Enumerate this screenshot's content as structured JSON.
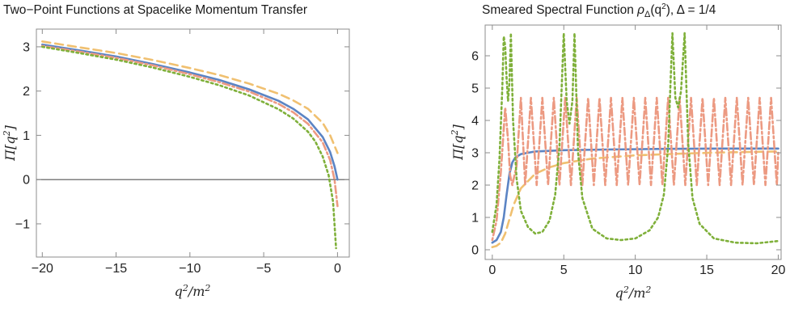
{
  "chart_data": [
    {
      "type": "line",
      "title": "Two−Point Functions at Spacelike Momentum Transfer",
      "xlabel": "q²/m²",
      "ylabel": "Π[q²]",
      "xlim": [
        -20.4,
        0.8
      ],
      "ylim": [
        -1.75,
        3.4
      ],
      "xticks": [
        -20,
        -15,
        -10,
        -5,
        0
      ],
      "xtick_labels": [
        "−20",
        "−15",
        "−10",
        "−5",
        "0"
      ],
      "yticks": [
        -1,
        0,
        1,
        2,
        3
      ],
      "ytick_labels": [
        "−1",
        "0",
        "1",
        "2",
        "3"
      ],
      "grid": false,
      "reference_line": {
        "y": 0
      },
      "series": [
        {
          "color": "#f0c070",
          "style": "dashed",
          "x": [
            -20,
            -17.5,
            -15,
            -12.5,
            -10,
            -8,
            -6,
            -4,
            -3,
            -2,
            -1,
            -0.5,
            0
          ],
          "y": [
            3.12,
            2.99,
            2.86,
            2.7,
            2.52,
            2.36,
            2.17,
            1.94,
            1.79,
            1.6,
            1.28,
            1.0,
            0.6
          ]
        },
        {
          "color": "#5b84c4",
          "style": "solid",
          "x": [
            -20,
            -17.5,
            -15,
            -12.5,
            -10,
            -8,
            -6,
            -4,
            -3,
            -2,
            -1,
            -0.5,
            -0.2,
            0
          ],
          "y": [
            3.05,
            2.92,
            2.78,
            2.61,
            2.42,
            2.25,
            2.04,
            1.78,
            1.6,
            1.36,
            0.96,
            0.62,
            0.3,
            0.0
          ]
        },
        {
          "color": "#ec9a82",
          "style": "dot-dash",
          "x": [
            -20,
            -17.5,
            -15,
            -12.5,
            -10,
            -8,
            -6,
            -4,
            -3,
            -2,
            -1,
            -0.5,
            -0.2,
            0
          ],
          "y": [
            3.02,
            2.89,
            2.75,
            2.58,
            2.38,
            2.2,
            1.99,
            1.71,
            1.52,
            1.26,
            0.84,
            0.44,
            0.0,
            -0.6
          ]
        },
        {
          "color": "#7fb03a",
          "style": "dotted",
          "x": [
            -20,
            -17.5,
            -15,
            -12.5,
            -10,
            -8,
            -6,
            -4,
            -3,
            -2,
            -1.5,
            -1,
            -0.6,
            -0.3,
            -0.1
          ],
          "y": [
            3.0,
            2.86,
            2.71,
            2.53,
            2.32,
            2.13,
            1.9,
            1.59,
            1.38,
            1.08,
            0.86,
            0.52,
            0.1,
            -0.5,
            -1.55
          ]
        }
      ]
    },
    {
      "type": "line",
      "title": "Smeared Spectral Function ρΔ(q²), Δ = 1/4",
      "xlabel": "q²/m²",
      "ylabel": "Π[q²]",
      "xlim": [
        -0.5,
        20.2
      ],
      "ylim": [
        -0.3,
        6.95
      ],
      "xticks": [
        0,
        5,
        10,
        15,
        20
      ],
      "xtick_labels": [
        "0",
        "5",
        "10",
        "15",
        "20"
      ],
      "yticks": [
        0,
        1,
        2,
        3,
        4,
        5,
        6
      ],
      "ytick_labels": [
        "0",
        "1",
        "2",
        "3",
        "4",
        "5",
        "6"
      ],
      "grid": false,
      "series": [
        {
          "color": "#f0c070",
          "style": "dashed",
          "x": [
            0,
            0.3,
            0.6,
            0.9,
            1.2,
            1.5,
            2,
            3,
            4,
            5,
            7,
            10,
            13,
            16,
            20
          ],
          "y": [
            0.08,
            0.12,
            0.22,
            0.5,
            0.95,
            1.4,
            1.9,
            2.35,
            2.55,
            2.68,
            2.82,
            2.92,
            2.97,
            3.01,
            3.04
          ]
        },
        {
          "color": "#5b84c4",
          "style": "solid",
          "x": [
            0,
            0.3,
            0.6,
            0.8,
            1.0,
            1.2,
            1.4,
            1.6,
            2,
            3,
            5,
            8,
            12,
            16,
            20
          ],
          "y": [
            0.22,
            0.3,
            0.55,
            1.0,
            1.7,
            2.35,
            2.7,
            2.85,
            2.96,
            3.04,
            3.08,
            3.1,
            3.12,
            3.13,
            3.13
          ]
        },
        {
          "color": "#ec9a82",
          "style": "dot-dash",
          "x": [
            0,
            0.3,
            0.6,
            0.9,
            1.1,
            1.25,
            1.4,
            1.7,
            2.0,
            2.3,
            2.7,
            3.1,
            3.5,
            3.9,
            4.3,
            4.7,
            5.1,
            5.5,
            5.9,
            6.3,
            6.7,
            7.1,
            7.5,
            7.9,
            8.3,
            8.7,
            9.1,
            9.5,
            9.9,
            10.3,
            10.7,
            11.1,
            11.5,
            11.9,
            12.3,
            12.7,
            13.1,
            13.5,
            13.9,
            14.3,
            14.7,
            15.1,
            15.5,
            15.9,
            16.3,
            16.7,
            17.1,
            17.5,
            17.9,
            18.3,
            18.7,
            19.1,
            19.5,
            19.9,
            20
          ],
          "y": [
            0.3,
            0.9,
            2.4,
            4.4,
            3.4,
            2.3,
            2.0,
            2.6,
            4.7,
            2.0,
            4.7,
            2.0,
            4.7,
            2.0,
            4.7,
            2.0,
            4.7,
            2.0,
            4.7,
            2.0,
            4.7,
            2.0,
            4.7,
            2.0,
            4.7,
            2.0,
            4.7,
            2.0,
            4.7,
            2.0,
            4.7,
            2.0,
            4.7,
            2.0,
            4.7,
            2.0,
            4.7,
            2.0,
            4.7,
            2.0,
            4.7,
            2.0,
            4.7,
            2.0,
            4.7,
            2.0,
            4.7,
            2.0,
            4.7,
            2.0,
            4.7,
            2.0,
            4.7,
            2.0,
            3.0
          ]
        },
        {
          "color": "#7fb03a",
          "style": "dotted",
          "x": [
            0,
            0.3,
            0.5,
            0.7,
            0.8,
            0.9,
            1.0,
            1.1,
            1.2,
            1.3,
            1.45,
            1.7,
            2.0,
            2.5,
            3.0,
            3.5,
            4.0,
            4.4,
            4.7,
            4.85,
            5.0,
            5.2,
            5.4,
            5.6,
            5.75,
            6.0,
            6.3,
            7.0,
            8.0,
            9.0,
            10.0,
            11.0,
            11.6,
            12.0,
            12.3,
            12.45,
            12.6,
            12.8,
            13.0,
            13.2,
            13.45,
            13.7,
            14.0,
            14.5,
            15.5,
            17.0,
            18.5,
            20.0
          ],
          "y": [
            0.55,
            1.4,
            2.8,
            5.0,
            6.6,
            6.3,
            5.3,
            4.6,
            5.2,
            6.7,
            4.0,
            2.2,
            1.2,
            0.7,
            0.5,
            0.55,
            0.9,
            1.7,
            3.2,
            5.0,
            6.7,
            4.6,
            3.9,
            4.6,
            6.7,
            3.0,
            1.6,
            0.65,
            0.35,
            0.3,
            0.35,
            0.6,
            1.0,
            1.7,
            3.2,
            5.0,
            6.7,
            4.7,
            4.4,
            4.9,
            6.7,
            3.3,
            1.6,
            0.8,
            0.35,
            0.22,
            0.2,
            0.27
          ]
        }
      ]
    }
  ]
}
